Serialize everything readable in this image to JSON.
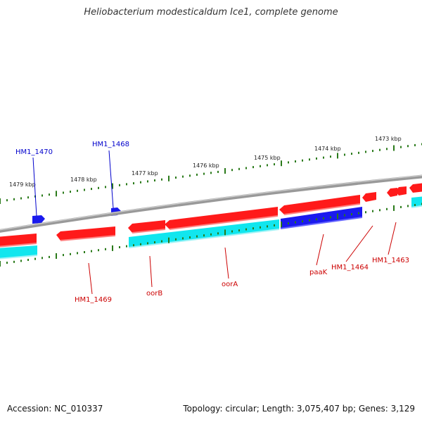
{
  "title": "Heliobacterium modesticaldum Ice1, complete genome",
  "footer": {
    "accession": "Accession: NC_010337",
    "summary": "Topology: circular; Length: 3,075,407 bp; Genes: 3,129"
  },
  "colors": {
    "backbone": "#888888",
    "tick": "#2a7a1a",
    "gene_forward": "#ff1a1a",
    "gene_forward_shadow": "#ff8080",
    "gene_reverse_blue": "#1a1aee",
    "gene_cds_cyan": "#11e6ee",
    "label_red": "#cc0000",
    "label_blue": "#0000cc"
  },
  "kbp_labels": [
    "1479 kbp",
    "1478 kbp",
    "1477 kbp",
    "1476 kbp",
    "1475 kbp",
    "1474 kbp",
    "1473 kbp"
  ],
  "gene_labels": {
    "hm1_1470": "HM1_1470",
    "hm1_1468": "HM1_1468",
    "hm1_1469": "HM1_1469",
    "oorB": "oorB",
    "oorA": "oorA",
    "paaK": "paaK",
    "hm1_1464": "HM1_1464",
    "hm1_1463": "HM1_1463"
  }
}
